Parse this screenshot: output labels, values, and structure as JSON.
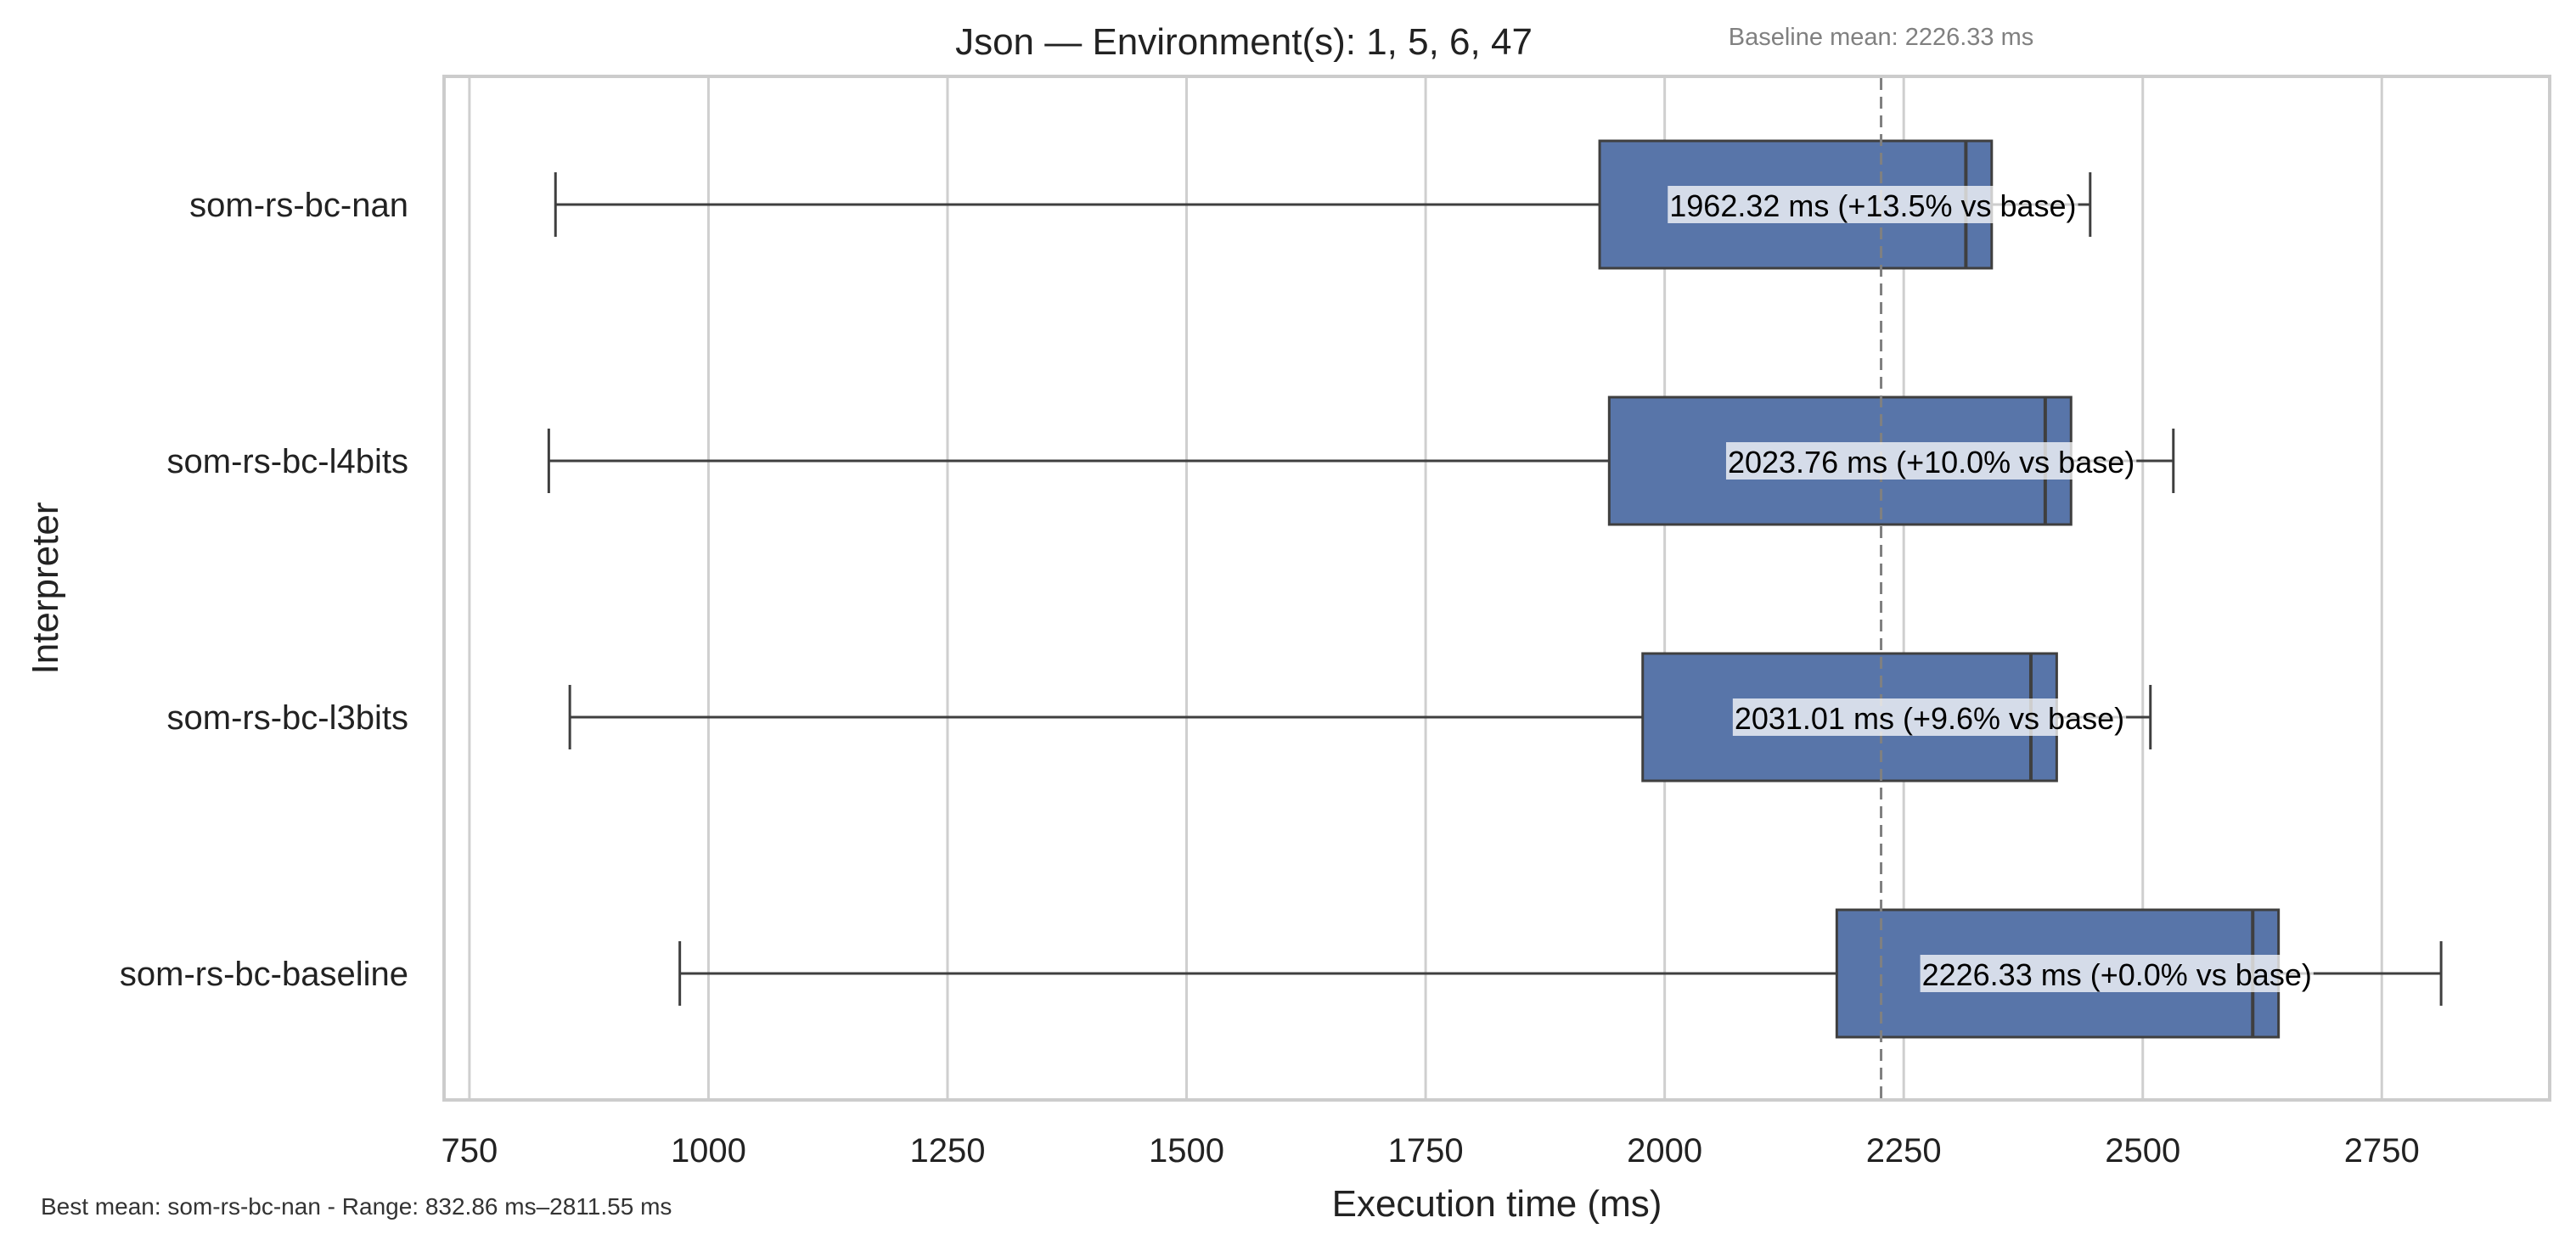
{
  "chart_data": {
    "type": "box",
    "title": "Json — Environment(s): 1, 5, 6, 47",
    "xlabel": "Execution time (ms)",
    "ylabel": "Interpreter",
    "xlim": [
      735,
      2930
    ],
    "xticks": [
      750,
      1000,
      1250,
      1500,
      1750,
      2000,
      2250,
      2500,
      2750
    ],
    "orientation": "horizontal",
    "grid": "vertical",
    "box_color": "#5875a9",
    "categories": [
      "som-rs-bc-nan",
      "som-rs-bc-l4bits",
      "som-rs-bc-l3bits",
      "som-rs-bc-baseline"
    ],
    "boxes": [
      {
        "name": "som-rs-bc-nan",
        "whisker_low": 840,
        "q1": 1932,
        "median": 2315,
        "q3": 2342,
        "whisker_high": 2445,
        "label": "1962.32 ms  (+13.5% vs base)",
        "label_x": 2005
      },
      {
        "name": "som-rs-bc-l4bits",
        "whisker_low": 833,
        "q1": 1942,
        "median": 2398,
        "q3": 2425,
        "whisker_high": 2532,
        "label": "2023.76 ms  (+10.0% vs base)",
        "label_x": 2066
      },
      {
        "name": "som-rs-bc-l3bits",
        "whisker_low": 855,
        "q1": 1977,
        "median": 2383,
        "q3": 2410,
        "whisker_high": 2508,
        "label": "2031.01 ms  (+9.6% vs base)",
        "label_x": 2073
      },
      {
        "name": "som-rs-bc-baseline",
        "whisker_low": 970,
        "q1": 2180,
        "median": 2615,
        "q3": 2642,
        "whisker_high": 2812,
        "label": "2226.33 ms  (+0.0% vs base)",
        "label_x": 2269
      }
    ],
    "baseline": {
      "value": 2226.33,
      "label": "Baseline mean: 2226.33 ms",
      "style": "dashed",
      "color": "#808080"
    },
    "footnote": "Best mean: som-rs-bc-nan - Range: 832.86 ms–2811.55 ms"
  }
}
